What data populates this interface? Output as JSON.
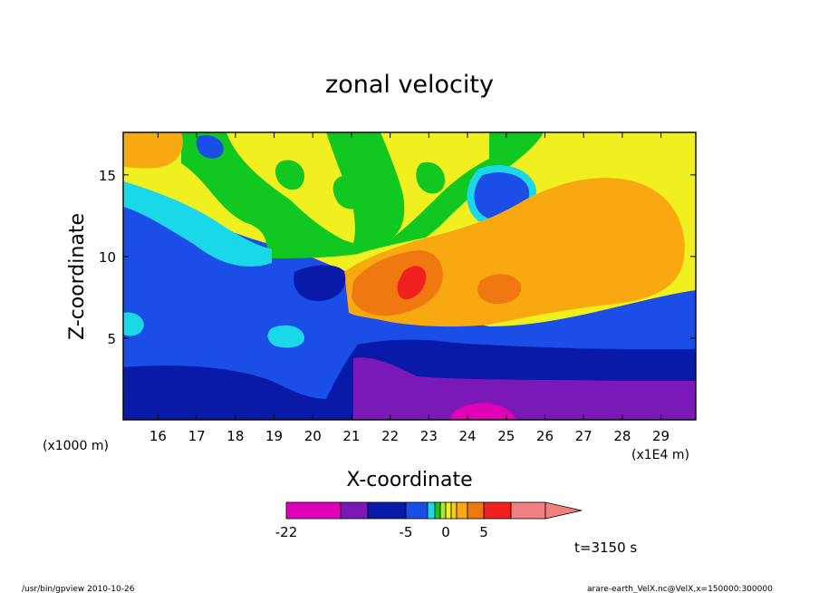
{
  "chart_data": {
    "type": "heatmap",
    "title": "zonal velocity",
    "xlabel": "X-coordinate",
    "ylabel": "Z-coordinate",
    "x_unit_note": "(x1E4 m)",
    "y_unit_note": "(x1000 m)",
    "xlim": [
      15.1,
      29.9
    ],
    "ylim": [
      0,
      17.6
    ],
    "x_ticks": [
      "16",
      "17",
      "18",
      "19",
      "20",
      "21",
      "22",
      "23",
      "24",
      "25",
      "26",
      "27",
      "28",
      "29"
    ],
    "y_ticks": [
      "5",
      "10",
      "15"
    ],
    "colorbar": {
      "labels": [
        "-22",
        "-5",
        "0",
        "5"
      ],
      "levels": [
        -22,
        -16,
        -10,
        -5,
        -3,
        -2,
        -1,
        0,
        1,
        2,
        3,
        5,
        10,
        15
      ],
      "colors": [
        "#e000b8",
        "#7a18b8",
        "#0a1aa8",
        "#1a4ee6",
        "#1ad8e8",
        "#10c820",
        "#a8e830",
        "#f0f020",
        "#f8cc10",
        "#f8a810",
        "#f07810",
        "#f02020",
        "#f08080"
      ]
    },
    "regions": [
      {
        "name": "lower-purple-easterly",
        "value": -16
      },
      {
        "name": "strong-core-magenta",
        "value": -22
      },
      {
        "name": "deep-blue-layer",
        "value": -10
      },
      {
        "name": "mid-blue-region",
        "value": -5
      },
      {
        "name": "upper-yellow-band",
        "value": 1
      },
      {
        "name": "westerly-orange-jet",
        "value": 5
      },
      {
        "name": "jet-core-red",
        "value": 10
      }
    ],
    "time_label": "t=3150 s"
  },
  "footer": {
    "left": "/usr/bin/gpview   2010-10-26",
    "right": "arare-earth_VelX.nc@VelX,x=150000:300000"
  }
}
